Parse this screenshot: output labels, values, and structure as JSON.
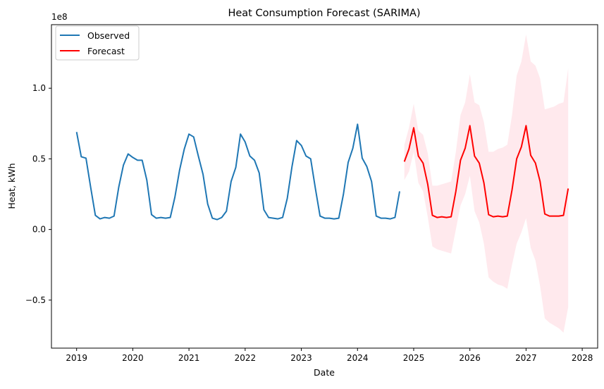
{
  "chart_data": {
    "type": "line",
    "title": "Heat Consumption Forecast (SARIMA)",
    "xlabel": "Date",
    "ylabel": "Heat, kWh",
    "y_scale_label": "1e8",
    "x_range": [
      "2018-07-20",
      "2028-04-10"
    ],
    "ylim": [
      -0.84,
      1.45
    ],
    "x_ticks": [
      "2019",
      "2020",
      "2021",
      "2022",
      "2023",
      "2024",
      "2025",
      "2026",
      "2027",
      "2028"
    ],
    "y_ticks": [
      {
        "value": -0.5,
        "label": "−0.5"
      },
      {
        "value": 0.0,
        "label": "0.0"
      },
      {
        "value": 0.5,
        "label": "0.5"
      },
      {
        "value": 1.0,
        "label": "1.0"
      }
    ],
    "grid": false,
    "legend": {
      "position": "top-left",
      "entries": [
        "Observed",
        "Forecast"
      ]
    },
    "colors": {
      "observed": "#1f77b4",
      "forecast": "#ff0000",
      "confidence_band": "#ffc0cb"
    },
    "series": [
      {
        "name": "Observed",
        "x": [
          "2019-01",
          "2019-02",
          "2019-03",
          "2019-04",
          "2019-05",
          "2019-06",
          "2019-07",
          "2019-08",
          "2019-09",
          "2019-10",
          "2019-11",
          "2019-12",
          "2020-01",
          "2020-02",
          "2020-03",
          "2020-04",
          "2020-05",
          "2020-06",
          "2020-07",
          "2020-08",
          "2020-09",
          "2020-10",
          "2020-11",
          "2020-12",
          "2021-01",
          "2021-02",
          "2021-03",
          "2021-04",
          "2021-05",
          "2021-06",
          "2021-07",
          "2021-08",
          "2021-09",
          "2021-10",
          "2021-11",
          "2021-12",
          "2022-01",
          "2022-02",
          "2022-03",
          "2022-04",
          "2022-05",
          "2022-06",
          "2022-07",
          "2022-08",
          "2022-09",
          "2022-10",
          "2022-11",
          "2022-12",
          "2023-01",
          "2023-02",
          "2023-03",
          "2023-04",
          "2023-05",
          "2023-06",
          "2023-07",
          "2023-08",
          "2023-09",
          "2023-10",
          "2023-11",
          "2023-12",
          "2024-01",
          "2024-02",
          "2024-03",
          "2024-04",
          "2024-05",
          "2024-06",
          "2024-07",
          "2024-08",
          "2024-09",
          "2024-10"
        ],
        "values": [
          0.69,
          0.515,
          0.505,
          0.3,
          0.1,
          0.075,
          0.085,
          0.08,
          0.095,
          0.3,
          0.455,
          0.535,
          0.51,
          0.49,
          0.49,
          0.35,
          0.105,
          0.08,
          0.085,
          0.08,
          0.085,
          0.23,
          0.42,
          0.57,
          0.675,
          0.655,
          0.52,
          0.39,
          0.18,
          0.08,
          0.07,
          0.085,
          0.13,
          0.34,
          0.44,
          0.675,
          0.62,
          0.52,
          0.49,
          0.4,
          0.14,
          0.085,
          0.08,
          0.075,
          0.085,
          0.22,
          0.445,
          0.63,
          0.595,
          0.52,
          0.5,
          0.29,
          0.095,
          0.08,
          0.08,
          0.075,
          0.08,
          0.25,
          0.475,
          0.575,
          0.745,
          0.505,
          0.445,
          0.34,
          0.095,
          0.08,
          0.08,
          0.075,
          0.085,
          0.27
        ]
      },
      {
        "name": "Forecast",
        "x": [
          "2024-11",
          "2024-12",
          "2025-01",
          "2025-02",
          "2025-03",
          "2025-04",
          "2025-05",
          "2025-06",
          "2025-07",
          "2025-08",
          "2025-09",
          "2025-10",
          "2025-11",
          "2025-12",
          "2026-01",
          "2026-02",
          "2026-03",
          "2026-04",
          "2026-05",
          "2026-06",
          "2026-07",
          "2026-08",
          "2026-09",
          "2026-10",
          "2026-11",
          "2026-12",
          "2027-01",
          "2027-02",
          "2027-03",
          "2027-04",
          "2027-05",
          "2027-06",
          "2027-07",
          "2027-08",
          "2027-09",
          "2027-10"
        ],
        "values": [
          0.48,
          0.57,
          0.72,
          0.52,
          0.47,
          0.32,
          0.1,
          0.085,
          0.09,
          0.085,
          0.09,
          0.27,
          0.49,
          0.575,
          0.735,
          0.52,
          0.47,
          0.33,
          0.105,
          0.09,
          0.095,
          0.09,
          0.095,
          0.28,
          0.5,
          0.585,
          0.735,
          0.525,
          0.47,
          0.34,
          0.11,
          0.095,
          0.095,
          0.095,
          0.1,
          0.29
        ],
        "lower": [
          0.35,
          0.41,
          0.55,
          0.33,
          0.27,
          0.09,
          -0.12,
          -0.14,
          -0.15,
          -0.16,
          -0.17,
          0.0,
          0.17,
          0.25,
          0.38,
          0.13,
          0.05,
          -0.1,
          -0.34,
          -0.37,
          -0.39,
          -0.4,
          -0.42,
          -0.25,
          -0.1,
          -0.02,
          0.08,
          -0.13,
          -0.22,
          -0.4,
          -0.63,
          -0.66,
          -0.68,
          -0.7,
          -0.73,
          -0.55
        ],
        "upper": [
          0.6,
          0.72,
          0.89,
          0.7,
          0.67,
          0.54,
          0.31,
          0.31,
          0.32,
          0.33,
          0.34,
          0.55,
          0.81,
          0.9,
          1.1,
          0.9,
          0.88,
          0.76,
          0.55,
          0.55,
          0.57,
          0.58,
          0.6,
          0.81,
          1.09,
          1.19,
          1.38,
          1.19,
          1.16,
          1.07,
          0.85,
          0.86,
          0.87,
          0.89,
          0.9,
          1.14
        ]
      }
    ]
  }
}
